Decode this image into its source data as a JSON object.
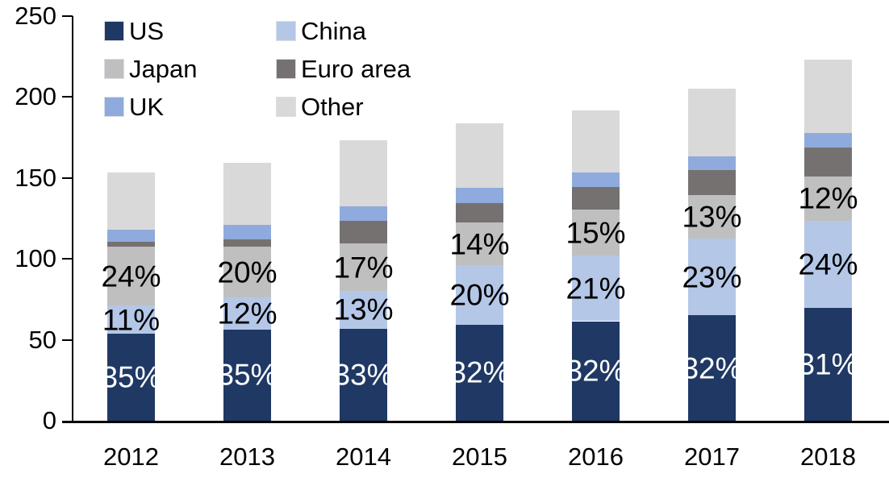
{
  "chart_data": {
    "type": "bar",
    "stacked": true,
    "title": "",
    "categories": [
      "2012",
      "2013",
      "2014",
      "2015",
      "2016",
      "2017",
      "2018"
    ],
    "series": [
      {
        "name": "US",
        "color": "#1F3864",
        "values": [
          54,
          56.5,
          57,
          59.5,
          61.5,
          65,
          69.5
        ],
        "labels": [
          "35%",
          "35%",
          "33%",
          "32%",
          "32%",
          "32%",
          "31%"
        ],
        "label_color": "#FFFFFF"
      },
      {
        "name": "China",
        "color": "#B4C7E7",
        "values": [
          17,
          19.5,
          23,
          36.5,
          40.5,
          47.5,
          54
        ],
        "labels": [
          "11%",
          "12%",
          "13%",
          "20%",
          "21%",
          "23%",
          "24%"
        ],
        "label_color": "#000000"
      },
      {
        "name": "Japan",
        "color": "#BFBFBF",
        "values": [
          36.5,
          31.5,
          29.5,
          26.5,
          28.5,
          27,
          27.5
        ],
        "labels": [
          "24%",
          "20%",
          "17%",
          "14%",
          "15%",
          "13%",
          "12%"
        ],
        "label_color": "#000000"
      },
      {
        "name": "Euro area",
        "color": "#767171",
        "values": [
          3,
          4.5,
          14,
          12,
          14,
          15.5,
          18
        ],
        "labels": [
          "",
          "",
          "",
          "",
          "",
          "",
          ""
        ],
        "label_color": "#000000"
      },
      {
        "name": "UK",
        "color": "#8FAADC",
        "values": [
          7.5,
          9,
          9,
          9.5,
          9,
          8.5,
          9
        ],
        "labels": [
          "",
          "",
          "",
          "",
          "",
          "",
          ""
        ],
        "label_color": "#000000"
      },
      {
        "name": "Other",
        "color": "#D9D9D9",
        "values": [
          35.5,
          38.5,
          41,
          40,
          38,
          41.5,
          45
        ],
        "labels": [
          "",
          "",
          "",
          "",
          "",
          "",
          ""
        ],
        "label_color": "#000000"
      }
    ],
    "y_axis": {
      "min": 0,
      "max": 250,
      "step": 50,
      "tick_labels": [
        "0",
        "50",
        "100",
        "150",
        "200",
        "250"
      ]
    },
    "x_axis": {
      "tick_labels": [
        "2012",
        "2013",
        "2014",
        "2015",
        "2016",
        "2017",
        "2018"
      ]
    },
    "legend": {
      "position": "top-left",
      "columns": 2,
      "entries": [
        "US",
        "China",
        "Japan",
        "Euro area",
        "UK",
        "Other"
      ]
    },
    "grid": false,
    "axis_color": "#000000"
  }
}
